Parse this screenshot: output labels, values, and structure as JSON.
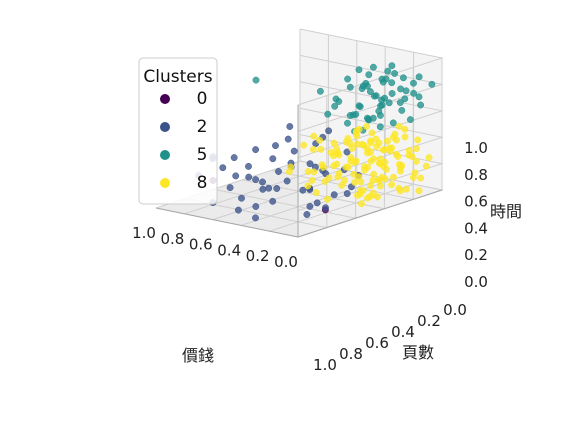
{
  "chart_data": {
    "type": "scatter",
    "projection": "3d",
    "axes": {
      "x": {
        "label": "價錢",
        "ticks": [
          "0.0",
          "0.2",
          "0.4",
          "0.6",
          "0.8",
          "1.0"
        ],
        "range": [
          0,
          1
        ]
      },
      "y": {
        "label": "頁數",
        "ticks": [
          "0.0",
          "0.2",
          "0.4",
          "0.6",
          "0.8",
          "1.0"
        ],
        "range": [
          0,
          1
        ]
      },
      "z": {
        "label": "時間",
        "ticks": [
          "0.0",
          "0.2",
          "0.4",
          "0.6",
          "0.8",
          "1.0"
        ],
        "range": [
          0,
          1
        ]
      }
    },
    "grid": true,
    "legend": {
      "title": "Clusters",
      "placement": "top-left",
      "entries": [
        {
          "label": "0",
          "color": "#440154"
        },
        {
          "label": "2",
          "color": "#3b528b"
        },
        {
          "label": "5",
          "color": "#21918c"
        },
        {
          "label": "8",
          "color": "#fde725"
        }
      ]
    },
    "series": [
      {
        "name": "0",
        "color": "#440154",
        "points": [
          [
            0.03,
            0.22,
            0.12
          ],
          [
            0.68,
            0.08,
            0.25
          ]
        ]
      },
      {
        "name": "2",
        "color": "#3b528b",
        "points": [
          [
            0.62,
            0.02,
            0.45
          ],
          [
            0.58,
            0.05,
            0.38
          ],
          [
            0.52,
            0.08,
            0.32
          ],
          [
            0.49,
            0.04,
            0.48
          ],
          [
            0.45,
            0.1,
            0.4
          ],
          [
            0.42,
            0.12,
            0.3
          ],
          [
            0.4,
            0.15,
            0.22
          ],
          [
            0.38,
            0.08,
            0.55
          ],
          [
            0.36,
            0.18,
            0.45
          ],
          [
            0.34,
            0.2,
            0.35
          ],
          [
            0.32,
            0.14,
            0.15
          ],
          [
            0.3,
            0.22,
            0.28
          ],
          [
            0.28,
            0.25,
            0.5
          ],
          [
            0.26,
            0.1,
            0.6
          ],
          [
            0.25,
            0.28,
            0.2
          ],
          [
            0.24,
            0.18,
            0.72
          ],
          [
            0.22,
            0.3,
            0.4
          ],
          [
            0.21,
            0.06,
            0.3
          ],
          [
            0.2,
            0.32,
            0.55
          ],
          [
            0.18,
            0.26,
            0.1
          ],
          [
            0.17,
            0.12,
            0.45
          ],
          [
            0.16,
            0.35,
            0.32
          ],
          [
            0.15,
            0.08,
            0.68
          ],
          [
            0.14,
            0.22,
            0.25
          ],
          [
            0.13,
            0.3,
            0.62
          ],
          [
            0.12,
            0.18,
            0.08
          ],
          [
            0.11,
            0.28,
            0.38
          ],
          [
            0.1,
            0.05,
            0.52
          ],
          [
            0.09,
            0.34,
            0.18
          ],
          [
            0.08,
            0.2,
            0.44
          ],
          [
            0.07,
            0.15,
            0.3
          ],
          [
            0.06,
            0.25,
            0.12
          ],
          [
            0.55,
            0.15,
            0.12
          ],
          [
            0.6,
            0.12,
            0.2
          ],
          [
            0.65,
            0.05,
            0.1
          ],
          [
            0.72,
            0.02,
            0.3
          ],
          [
            0.5,
            0.2,
            0.05
          ],
          [
            0.44,
            0.02,
            0.1
          ],
          [
            0.35,
            0.05,
            0.05
          ],
          [
            0.7,
            0.1,
            0.42
          ],
          [
            0.08,
            0.4,
            0.35
          ],
          [
            0.05,
            0.42,
            0.22
          ],
          [
            0.04,
            0.38,
            0.5
          ],
          [
            0.03,
            0.45,
            0.3
          ],
          [
            0.1,
            0.44,
            0.15
          ],
          [
            0.46,
            0.25,
            0.18
          ],
          [
            0.27,
            0.02,
            0.35
          ],
          [
            0.19,
            0.4,
            0.62
          ],
          [
            0.23,
            0.36,
            0.08
          ],
          [
            0.57,
            0.22,
            0.25
          ]
        ]
      },
      {
        "name": "5",
        "color": "#21918c",
        "points": [
          [
            0.05,
            0.58,
            0.85
          ],
          [
            0.06,
            0.62,
            0.72
          ],
          [
            0.08,
            0.55,
            0.95
          ],
          [
            0.1,
            0.7,
            0.78
          ],
          [
            0.12,
            0.6,
            0.66
          ],
          [
            0.14,
            0.75,
            0.9
          ],
          [
            0.16,
            0.52,
            0.7
          ],
          [
            0.18,
            0.68,
            0.82
          ],
          [
            0.2,
            0.72,
            0.6
          ],
          [
            0.22,
            0.58,
            0.88
          ],
          [
            0.24,
            0.78,
            0.74
          ],
          [
            0.26,
            0.64,
            0.64
          ],
          [
            0.28,
            0.8,
            0.94
          ],
          [
            0.3,
            0.56,
            0.78
          ],
          [
            0.04,
            0.76,
            0.68
          ],
          [
            0.07,
            0.82,
            0.8
          ],
          [
            0.09,
            0.66,
            0.58
          ],
          [
            0.11,
            0.85,
            0.72
          ],
          [
            0.13,
            0.62,
            0.98
          ],
          [
            0.15,
            0.88,
            0.86
          ],
          [
            0.17,
            0.74,
            0.62
          ],
          [
            0.19,
            0.9,
            0.76
          ],
          [
            0.21,
            0.6,
            0.54
          ],
          [
            0.23,
            0.86,
            0.66
          ],
          [
            0.25,
            0.7,
            0.84
          ],
          [
            0.27,
            0.92,
            0.7
          ],
          [
            0.03,
            0.68,
            0.92
          ],
          [
            0.02,
            0.8,
            0.6
          ],
          [
            0.01,
            0.72,
            0.76
          ],
          [
            0.06,
            0.9,
            0.88
          ],
          [
            0.1,
            0.95,
            0.64
          ],
          [
            0.14,
            0.94,
            0.8
          ],
          [
            0.18,
            0.98,
            0.7
          ],
          [
            0.35,
            0.6,
            0.7
          ],
          [
            0.4,
            0.55,
            0.82
          ],
          [
            0.45,
            0.65,
            0.6
          ],
          [
            0.05,
            0.5,
            0.62
          ],
          [
            0.08,
            0.48,
            0.74
          ],
          [
            0.32,
            0.74,
            0.66
          ],
          [
            0.12,
            0.78,
            0.56
          ],
          [
            0.2,
            0.82,
            0.92
          ],
          [
            0.24,
            0.66,
            0.98
          ],
          [
            0.02,
            0.6,
            0.82
          ],
          [
            0.16,
            0.64,
            0.88
          ],
          [
            0.28,
            0.62,
            0.58
          ],
          [
            0.36,
            0.8,
            0.76
          ],
          [
            0.04,
            0.88,
            0.74
          ],
          [
            0.09,
            0.58,
            0.66
          ],
          [
            0.6,
            0.3,
            0.95
          ],
          [
            0.22,
            0.5,
            0.8
          ],
          [
            0.3,
            0.88,
            0.62
          ],
          [
            0.11,
            0.7,
            0.9
          ],
          [
            0.07,
            0.74,
            0.96
          ],
          [
            0.13,
            0.56,
            0.76
          ],
          [
            0.26,
            0.84,
            0.84
          ],
          [
            0.03,
            0.52,
            0.7
          ],
          [
            0.19,
            0.76,
            0.68
          ],
          [
            0.34,
            0.68,
            0.88
          ],
          [
            0.15,
            0.8,
            0.98
          ],
          [
            0.01,
            0.94,
            0.82
          ]
        ]
      },
      {
        "name": "8",
        "color": "#fde725",
        "points": [
          [
            0.05,
            0.55,
            0.1
          ],
          [
            0.08,
            0.6,
            0.2
          ],
          [
            0.1,
            0.65,
            0.05
          ],
          [
            0.12,
            0.58,
            0.3
          ],
          [
            0.14,
            0.7,
            0.15
          ],
          [
            0.16,
            0.62,
            0.25
          ],
          [
            0.18,
            0.75,
            0.08
          ],
          [
            0.2,
            0.68,
            0.35
          ],
          [
            0.22,
            0.8,
            0.12
          ],
          [
            0.24,
            0.72,
            0.22
          ],
          [
            0.26,
            0.85,
            0.3
          ],
          [
            0.28,
            0.78,
            0.05
          ],
          [
            0.3,
            0.9,
            0.18
          ],
          [
            0.32,
            0.82,
            0.28
          ],
          [
            0.34,
            0.95,
            0.1
          ],
          [
            0.36,
            0.88,
            0.2
          ],
          [
            0.38,
            0.75,
            0.32
          ],
          [
            0.4,
            0.92,
            0.06
          ],
          [
            0.42,
            0.7,
            0.14
          ],
          [
            0.44,
            0.98,
            0.24
          ],
          [
            0.46,
            0.8,
            0.36
          ],
          [
            0.48,
            0.66,
            0.08
          ],
          [
            0.5,
            0.86,
            0.16
          ],
          [
            0.04,
            0.68,
            0.4
          ],
          [
            0.06,
            0.78,
            0.25
          ],
          [
            0.08,
            0.88,
            0.12
          ],
          [
            0.1,
            0.92,
            0.32
          ],
          [
            0.12,
            0.82,
            0.05
          ],
          [
            0.14,
            0.96,
            0.2
          ],
          [
            0.16,
            0.72,
            0.42
          ],
          [
            0.18,
            0.86,
            0.28
          ],
          [
            0.2,
            0.94,
            0.38
          ],
          [
            0.22,
            0.64,
            0.18
          ],
          [
            0.24,
            0.9,
            0.08
          ],
          [
            0.26,
            0.76,
            0.4
          ],
          [
            0.28,
            0.98,
            0.14
          ],
          [
            0.3,
            0.7,
            0.26
          ],
          [
            0.32,
            0.62,
            0.1
          ],
          [
            0.34,
            0.84,
            0.34
          ],
          [
            0.36,
            0.96,
            0.02
          ],
          [
            0.02,
            0.58,
            0.22
          ],
          [
            0.03,
            0.74,
            0.08
          ],
          [
            0.05,
            0.84,
            0.3
          ],
          [
            0.07,
            0.96,
            0.18
          ],
          [
            0.09,
            0.52,
            0.12
          ],
          [
            0.11,
            0.76,
            0.38
          ],
          [
            0.13,
            0.88,
            0.02
          ],
          [
            0.15,
            0.54,
            0.34
          ],
          [
            0.17,
            0.98,
            0.1
          ],
          [
            0.19,
            0.6,
            0.06
          ],
          [
            0.21,
            0.88,
            0.42
          ],
          [
            0.23,
            0.56,
            0.28
          ],
          [
            0.25,
            0.94,
            0.22
          ],
          [
            0.27,
            0.66,
            0.12
          ],
          [
            0.29,
            0.8,
            0.44
          ],
          [
            0.31,
            0.74,
            0.02
          ],
          [
            0.33,
            0.92,
            0.26
          ],
          [
            0.35,
            0.68,
            0.4
          ],
          [
            0.37,
            0.58,
            0.16
          ],
          [
            0.39,
            0.82,
            0.04
          ],
          [
            0.41,
            0.86,
            0.3
          ],
          [
            0.43,
            0.6,
            0.22
          ],
          [
            0.45,
            0.72,
            0.1
          ],
          [
            0.47,
            0.94,
            0.4
          ],
          [
            0.49,
            0.76,
            0.26
          ],
          [
            0.52,
            0.9,
            0.04
          ],
          [
            0.54,
            0.7,
            0.18
          ],
          [
            0.56,
            0.96,
            0.3
          ],
          [
            0.58,
            0.82,
            0.12
          ],
          [
            0.6,
            0.66,
            0.02
          ],
          [
            0.62,
            0.88,
            0.22
          ],
          [
            0.64,
            0.74,
            0.36
          ],
          [
            0.66,
            0.92,
            0.08
          ],
          [
            0.68,
            0.62,
            0.16
          ],
          [
            0.7,
            0.84,
            0.28
          ],
          [
            0.72,
            0.78,
            0.06
          ],
          [
            0.74,
            0.98,
            0.2
          ],
          [
            0.01,
            0.66,
            0.16
          ],
          [
            0.02,
            0.86,
            0.04
          ],
          [
            0.03,
            0.94,
            0.26
          ],
          [
            0.01,
            0.78,
            0.34
          ],
          [
            0.06,
            0.5,
            0.06
          ],
          [
            0.08,
            0.7,
            0.46
          ],
          [
            0.1,
            0.58,
            0.44
          ],
          [
            0.12,
            0.66,
            0.48
          ],
          [
            0.14,
            0.8,
            0.44
          ],
          [
            0.16,
            0.9,
            0.46
          ],
          [
            0.18,
            0.66,
            0.02
          ],
          [
            0.2,
            0.52,
            0.2
          ],
          [
            0.22,
            0.74,
            0.02
          ],
          [
            0.24,
            0.6,
            0.44
          ],
          [
            0.26,
            0.96,
            0.44
          ],
          [
            0.28,
            0.56,
            0.36
          ],
          [
            0.3,
            0.98,
            0.32
          ],
          [
            0.32,
            0.72,
            0.46
          ],
          [
            0.34,
            0.54,
            0.02
          ],
          [
            0.36,
            0.78,
            0.46
          ],
          [
            0.38,
            0.94,
            0.14
          ],
          [
            0.4,
            0.64,
            0.3
          ],
          [
            0.42,
            0.82,
            0.42
          ],
          [
            0.44,
            0.56,
            0.04
          ],
          [
            0.46,
            0.9,
            0.28
          ],
          [
            0.48,
            0.98,
            0.12
          ],
          [
            0.5,
            0.6,
            0.34
          ],
          [
            0.52,
            0.78,
            0.24
          ],
          [
            0.55,
            0.64,
            0.08
          ],
          [
            0.58,
            0.94,
            0.14
          ],
          [
            0.61,
            0.76,
            0.26
          ],
          [
            0.64,
            0.98,
            0.04
          ],
          [
            0.67,
            0.7,
            0.3
          ],
          [
            0.7,
            0.92,
            0.16
          ],
          [
            0.73,
            0.66,
            0.1
          ],
          [
            0.76,
            0.86,
            0.02
          ],
          [
            0.05,
            0.62,
            0.36
          ],
          [
            0.07,
            0.9,
            0.4
          ],
          [
            0.09,
            0.8,
            0.22
          ],
          [
            0.11,
            0.96,
            0.08
          ],
          [
            0.13,
            0.7,
            0.28
          ],
          [
            0.15,
            0.86,
            0.16
          ],
          [
            0.17,
            0.58,
            0.46
          ],
          [
            0.19,
            0.82,
            0.34
          ],
          [
            0.21,
            0.98,
            0.26
          ],
          [
            0.23,
            0.68,
            0.06
          ],
          [
            0.25,
            0.84,
            0.18
          ]
        ]
      }
    ]
  }
}
